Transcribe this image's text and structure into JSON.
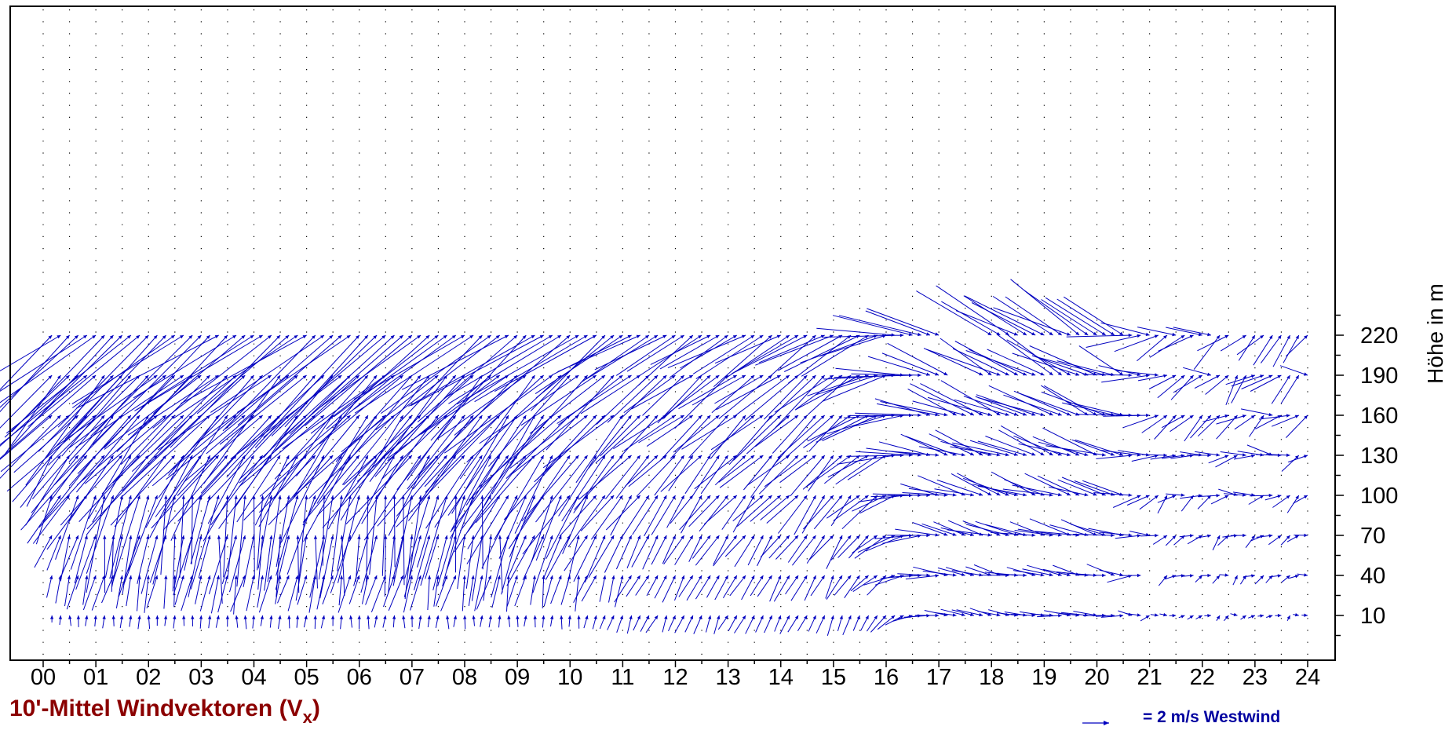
{
  "chart_data": {
    "type": "vector-field",
    "title": {
      "main": "10'-Mittel Windvektoren (V",
      "sub": "x",
      "close": ")"
    },
    "ylabel": "Höhe in m",
    "legend": {
      "label": "= 2 m/s Westwind",
      "reference_speed_ms": 2
    },
    "x_ticks": [
      "00",
      "01",
      "02",
      "03",
      "04",
      "05",
      "06",
      "07",
      "08",
      "09",
      "10",
      "11",
      "12",
      "13",
      "14",
      "15",
      "16",
      "17",
      "18",
      "19",
      "20",
      "21",
      "22",
      "23",
      "24"
    ],
    "xlim": [
      0,
      24
    ],
    "heights_m": [
      220,
      190,
      160,
      130,
      100,
      70,
      40,
      10
    ],
    "ylim": [
      -5,
      237
    ],
    "interval_minutes": 10,
    "series_note": "wind vectors from 00:10 to 24:00 at each height; u = eastward, v = northward component in m/s",
    "colors": {
      "vectors": "#0000c0",
      "title": "#8b0000",
      "legend": "#0000a0",
      "axis": "#000000",
      "grid": "#000000"
    },
    "gaps": [
      {
        "height_m": 220,
        "from_h": 17.1,
        "to_h": 17.9
      },
      {
        "height_m": 190,
        "from_h": 17.2,
        "to_h": 17.8
      },
      {
        "height_m": 40,
        "from_h": 21.0,
        "to_h": 21.2
      },
      {
        "height_m": 220,
        "from_h": 22.6,
        "to_h": 22.8
      }
    ]
  }
}
